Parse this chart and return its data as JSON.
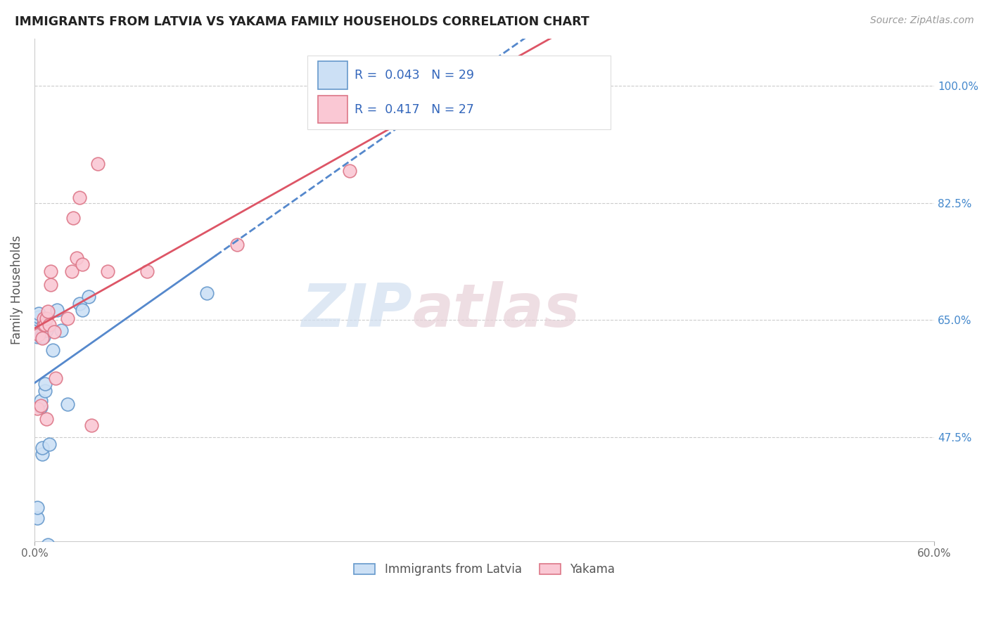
{
  "title": "IMMIGRANTS FROM LATVIA VS YAKAMA FAMILY HOUSEHOLDS CORRELATION CHART",
  "source": "Source: ZipAtlas.com",
  "ylabel": "Family Households",
  "ytick_labels": [
    "47.5%",
    "65.0%",
    "82.5%",
    "100.0%"
  ],
  "ytick_values": [
    0.475,
    0.65,
    0.825,
    1.0
  ],
  "xlim": [
    0.0,
    0.6
  ],
  "ylim": [
    0.32,
    1.07
  ],
  "legend_blue_label": "Immigrants from Latvia",
  "legend_pink_label": "Yakama",
  "blue_R": "0.043",
  "blue_N": "29",
  "pink_R": "0.417",
  "pink_N": "27",
  "blue_fill_color": "#cce0f5",
  "pink_fill_color": "#fac8d4",
  "blue_edge_color": "#6699cc",
  "pink_edge_color": "#dd7788",
  "blue_line_color": "#5588cc",
  "pink_line_color": "#dd5566",
  "watermark_zip": "ZIP",
  "watermark_atlas": "atlas",
  "blue_scatter_x": [
    0.002,
    0.002,
    0.002,
    0.002,
    0.003,
    0.003,
    0.003,
    0.004,
    0.004,
    0.004,
    0.005,
    0.005,
    0.005,
    0.006,
    0.006,
    0.006,
    0.007,
    0.007,
    0.008,
    0.009,
    0.01,
    0.012,
    0.015,
    0.018,
    0.022,
    0.03,
    0.032,
    0.036,
    0.115
  ],
  "blue_scatter_y": [
    0.355,
    0.37,
    0.625,
    0.64,
    0.65,
    0.655,
    0.66,
    0.52,
    0.53,
    0.625,
    0.45,
    0.46,
    0.625,
    0.625,
    0.635,
    0.645,
    0.545,
    0.555,
    0.635,
    0.315,
    0.465,
    0.605,
    0.665,
    0.635,
    0.525,
    0.675,
    0.665,
    0.685,
    0.69
  ],
  "pink_scatter_x": [
    0.002,
    0.003,
    0.004,
    0.005,
    0.006,
    0.006,
    0.007,
    0.008,
    0.008,
    0.009,
    0.01,
    0.011,
    0.011,
    0.013,
    0.014,
    0.022,
    0.025,
    0.026,
    0.028,
    0.03,
    0.032,
    0.038,
    0.042,
    0.049,
    0.075,
    0.135,
    0.21
  ],
  "pink_scatter_y": [
    0.518,
    0.628,
    0.523,
    0.623,
    0.643,
    0.653,
    0.643,
    0.503,
    0.653,
    0.663,
    0.643,
    0.703,
    0.723,
    0.633,
    0.563,
    0.653,
    0.723,
    0.803,
    0.743,
    0.833,
    0.733,
    0.493,
    0.883,
    0.723,
    0.723,
    0.763,
    0.873
  ]
}
